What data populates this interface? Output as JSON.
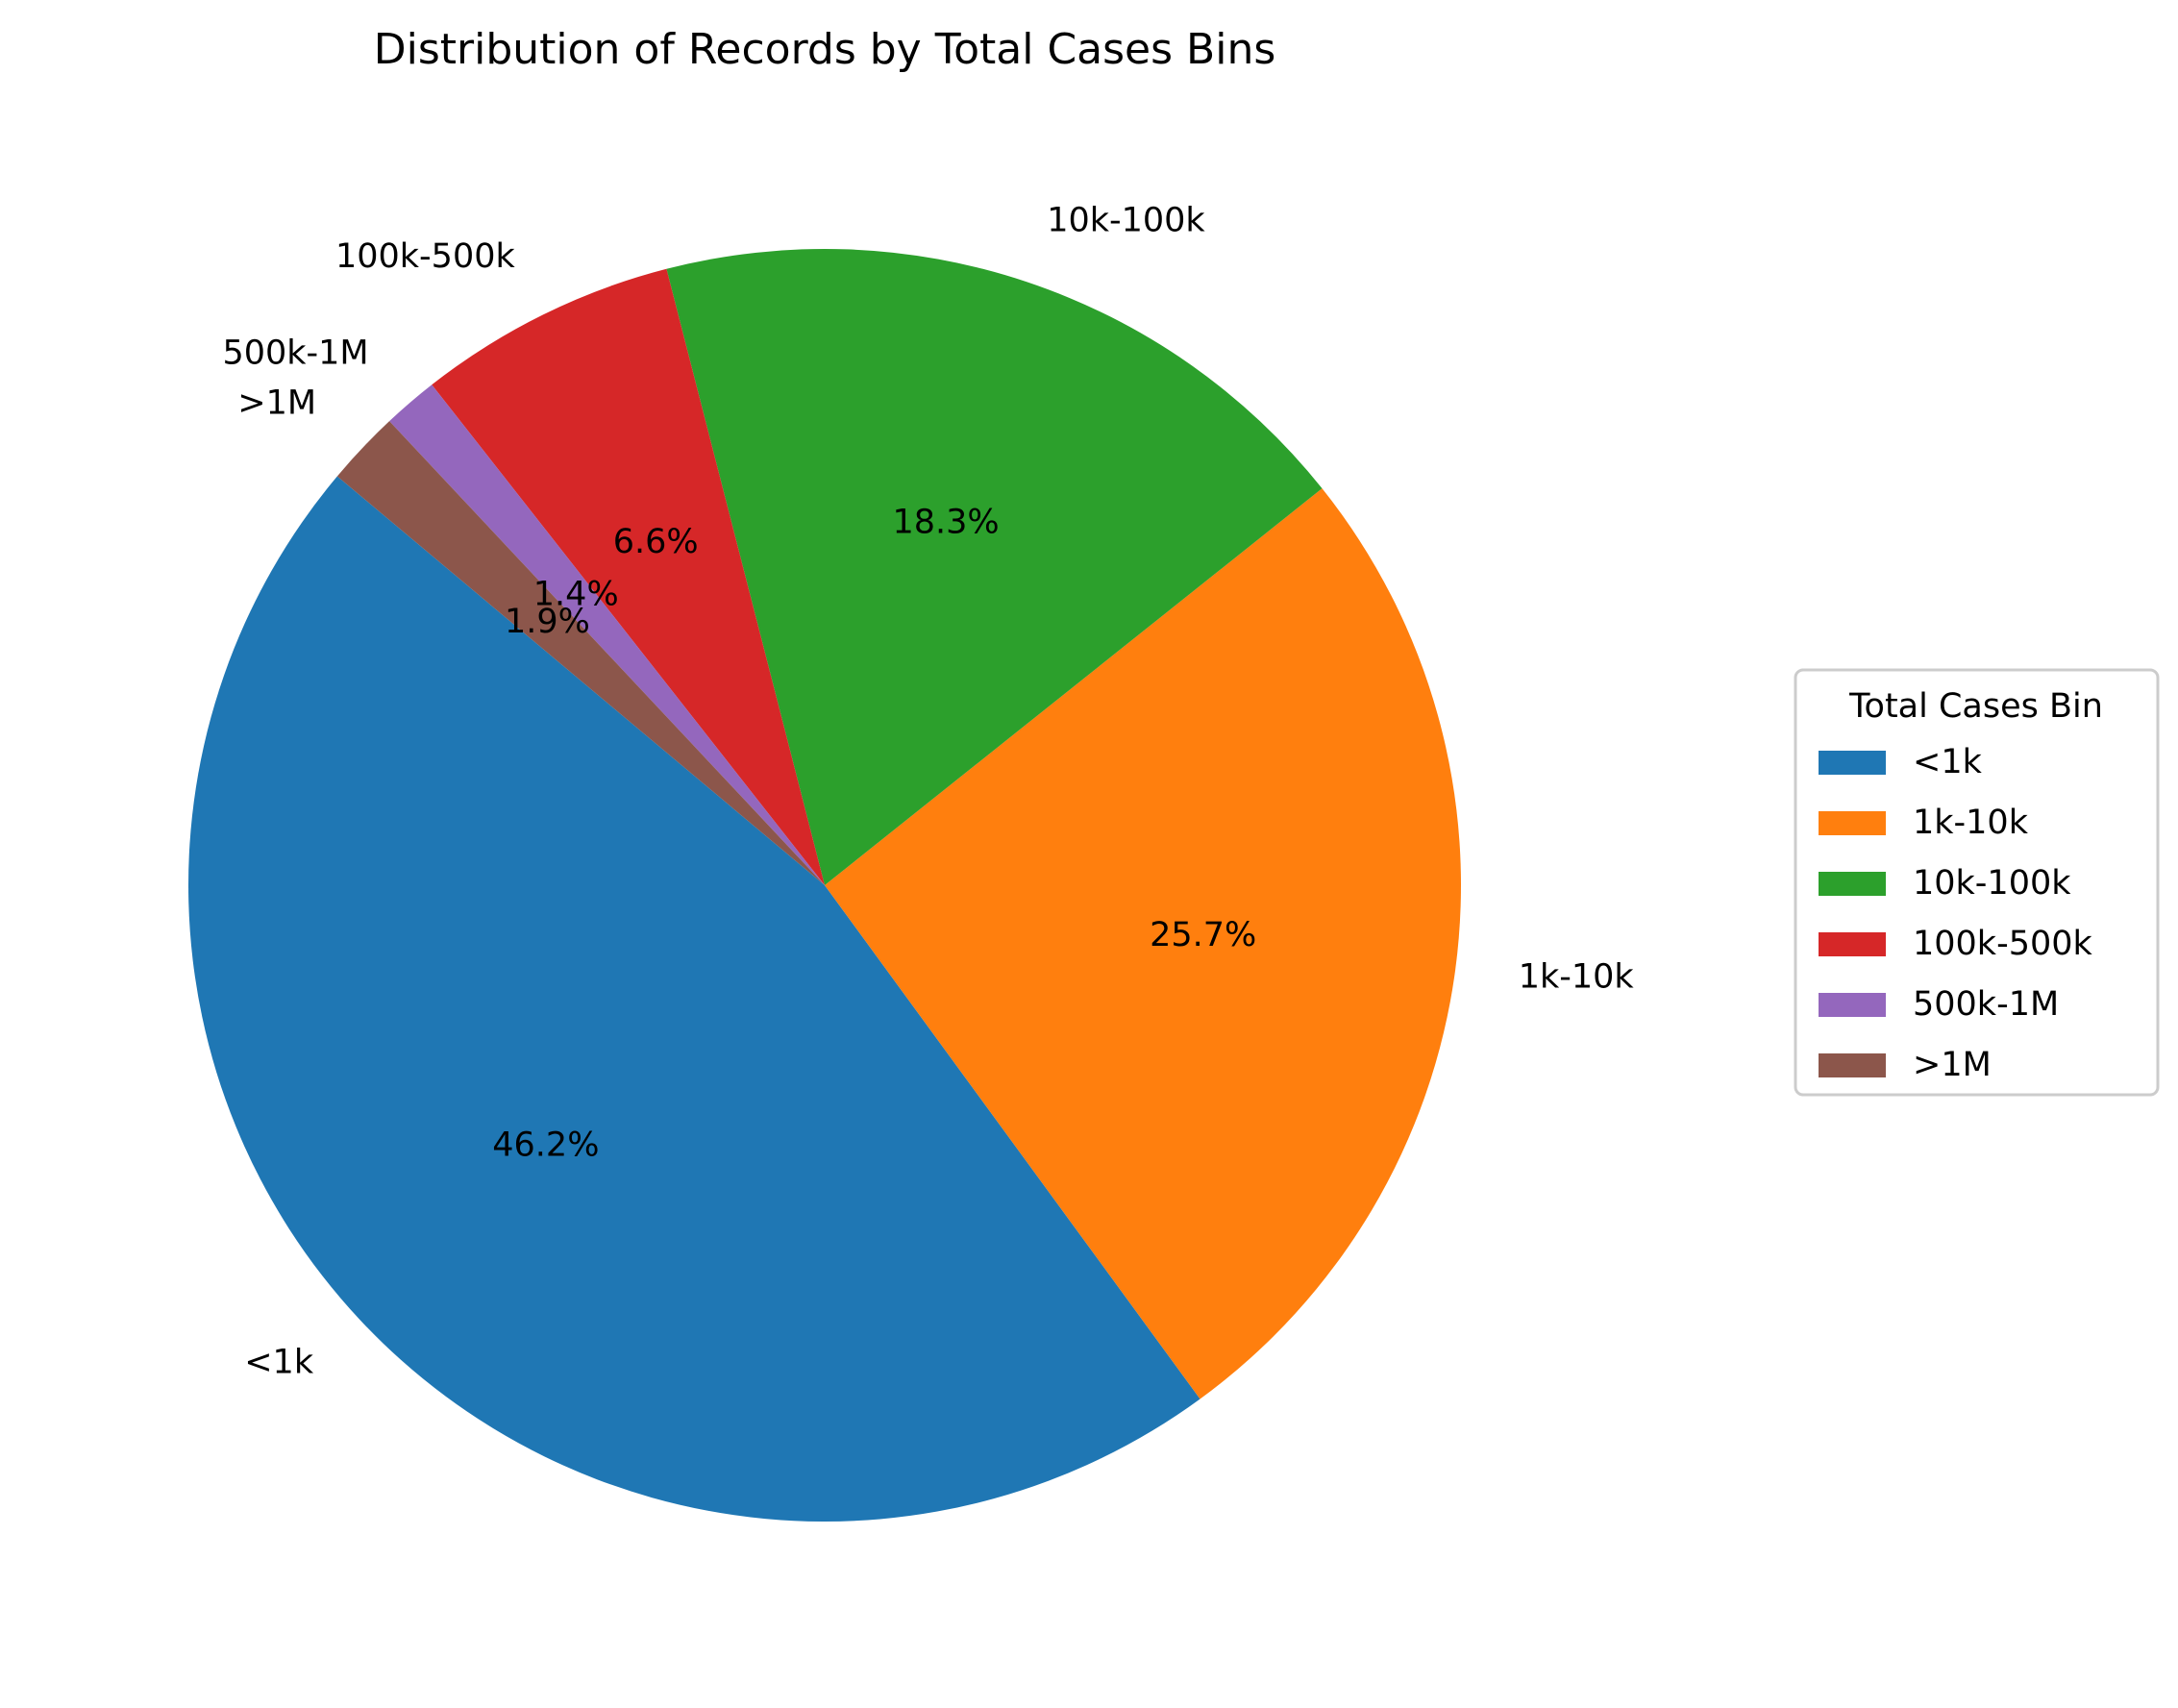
{
  "chart_data": {
    "type": "pie",
    "title": "Distribution of Records by Total Cases Bins",
    "categories": [
      "<1k",
      "1k-10k",
      "10k-100k",
      "100k-500k",
      "500k-1M",
      ">1M"
    ],
    "values": [
      46.2,
      25.7,
      18.3,
      6.6,
      1.4,
      1.9
    ],
    "value_labels": [
      "46.2%",
      "25.7%",
      "18.3%",
      "6.6%",
      "1.4%",
      "1.9%"
    ],
    "colors": [
      "#1f77b4",
      "#ff7f0e",
      "#2ca02c",
      "#d62728",
      "#9467bd",
      "#8c564b"
    ],
    "start_angle_deg": 140,
    "direction": "counterclockwise",
    "legend": {
      "title": "Total Cases Bin",
      "placement": "center-right",
      "entries": [
        "<1k",
        "1k-10k",
        "10k-100k",
        "100k-500k",
        "500k-1M",
        ">1M"
      ]
    }
  }
}
